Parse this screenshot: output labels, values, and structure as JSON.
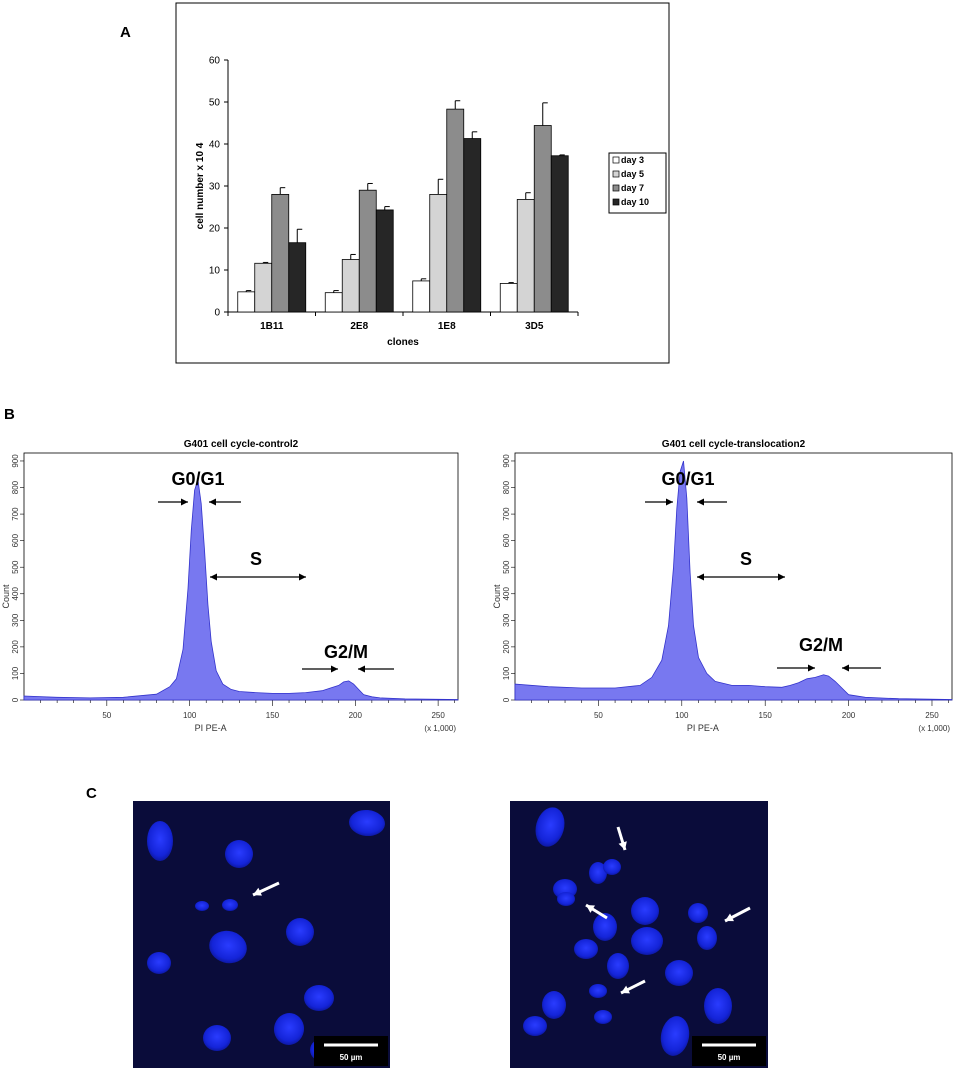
{
  "panels": {
    "a": "A",
    "b": "B",
    "c": "C"
  },
  "chart_data": [
    {
      "type": "bar",
      "categories": [
        "1B11",
        "2E8",
        "1E8",
        "3D5"
      ],
      "series": [
        {
          "name": "day 3",
          "color": "#ffffff",
          "values": [
            4.8,
            4.6,
            7.4,
            6.8
          ],
          "errors": [
            0.3,
            0.5,
            0.5,
            0.2
          ]
        },
        {
          "name": "day  5",
          "color": "#d4d4d4",
          "values": [
            11.6,
            12.5,
            28.0,
            26.8
          ],
          "errors": [
            0.2,
            1.2,
            3.6,
            1.6
          ]
        },
        {
          "name": "day 7",
          "color": "#8c8c8c",
          "values": [
            28.0,
            29.0,
            48.3,
            44.4
          ],
          "errors": [
            1.6,
            1.6,
            2.0,
            5.4
          ]
        },
        {
          "name": "day 10",
          "color": "#262626",
          "values": [
            16.5,
            24.3,
            41.3,
            37.2
          ],
          "errors": [
            3.2,
            0.8,
            1.6,
            0.2
          ]
        }
      ],
      "ylabel": "cell number x 10 4",
      "xlabel": "clones",
      "ylim": [
        0,
        60
      ],
      "yticks": [
        "0",
        "10",
        "20",
        "30",
        "40",
        "50",
        "60"
      ],
      "legend": "right",
      "grid": false
    },
    {
      "type": "area",
      "title": "G401  cell cycle-control2",
      "xlabel": "PI PE-A",
      "ylabel": "Count",
      "x_unit": "(x 1,000)",
      "xlim": [
        0,
        262
      ],
      "ylim": [
        0,
        930
      ],
      "xticks": [
        "50",
        "100",
        "150",
        "200",
        "250"
      ],
      "yticks": [
        "0",
        "100",
        "200",
        "300",
        "400",
        "500",
        "600",
        "700",
        "800",
        "900"
      ],
      "color": "#6666ee",
      "x": [
        0,
        20,
        40,
        60,
        80,
        88,
        92,
        96,
        99,
        101,
        103,
        105,
        107,
        109,
        111,
        113,
        116,
        120,
        125,
        130,
        140,
        150,
        160,
        170,
        180,
        185,
        190,
        193,
        196,
        199,
        202,
        205,
        210,
        215,
        230,
        262
      ],
      "y": [
        15,
        10,
        8,
        10,
        22,
        50,
        80,
        190,
        420,
        640,
        790,
        830,
        740,
        560,
        360,
        220,
        110,
        60,
        40,
        32,
        28,
        25,
        25,
        28,
        35,
        45,
        55,
        68,
        72,
        60,
        40,
        20,
        12,
        8,
        4,
        2
      ],
      "annotations": [
        "G0/G1",
        "S",
        "G2/M"
      ]
    },
    {
      "type": "area",
      "title": "G401  cell cycle-translocation2",
      "xlabel": "PI PE-A",
      "ylabel": "Count",
      "x_unit": "(x 1,000)",
      "xlim": [
        0,
        262
      ],
      "ylim": [
        0,
        930
      ],
      "xticks": [
        "50",
        "100",
        "150",
        "200",
        "250"
      ],
      "yticks": [
        "0",
        "100",
        "200",
        "300",
        "400",
        "500",
        "600",
        "700",
        "800",
        "900"
      ],
      "color": "#6666ee",
      "x": [
        0,
        20,
        40,
        60,
        75,
        82,
        88,
        92,
        95,
        97,
        99,
        101,
        103,
        105,
        107,
        110,
        115,
        120,
        130,
        140,
        150,
        160,
        165,
        170,
        175,
        180,
        185,
        188,
        192,
        196,
        200,
        210,
        230,
        262
      ],
      "y": [
        60,
        50,
        45,
        45,
        55,
        85,
        150,
        280,
        500,
        720,
        860,
        900,
        760,
        480,
        280,
        160,
        100,
        70,
        55,
        55,
        50,
        48,
        55,
        65,
        80,
        85,
        95,
        90,
        70,
        45,
        20,
        10,
        5,
        2
      ],
      "annotations": [
        "G0/G1",
        "S",
        "G2/M"
      ]
    }
  ],
  "microscopy": {
    "scale_left": "50 µm",
    "scale_right": "50 µm"
  }
}
